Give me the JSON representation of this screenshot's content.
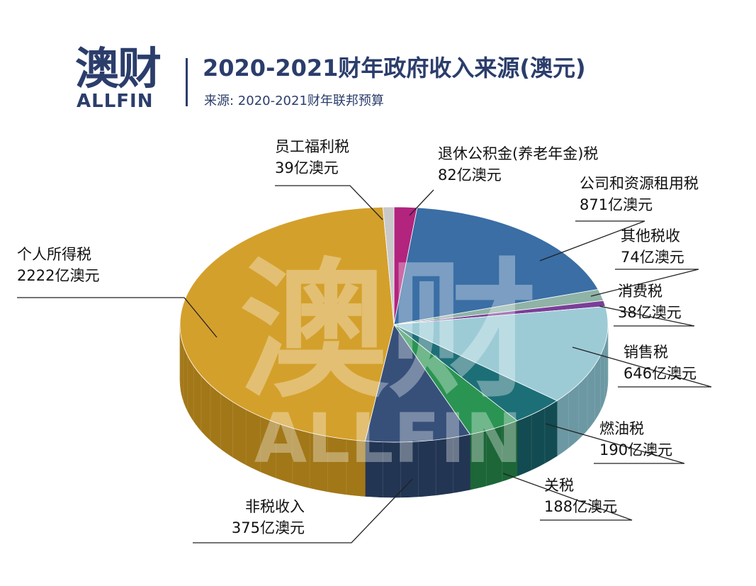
{
  "header": {
    "logo_cn": "澳财",
    "logo_en": "ALLFIN",
    "title": "2020-2021财年政府收入来源(澳元)",
    "source": "来源: 2020-2021财年联邦预算"
  },
  "watermark": {
    "cn": "澳财",
    "en": "ALLFIN"
  },
  "chart_data": {
    "type": "pie",
    "title": "2020-2021财年政府收入来源(澳元)",
    "subtitle": "来源: 2020-2021财年联邦预算",
    "unit": "亿澳元",
    "start_angle_deg": -90,
    "slices": [
      {
        "name": "退休公积金(养老年金)税",
        "value": 82,
        "label": "82亿澳元",
        "color": "#b2247e",
        "side": "#7c1858"
      },
      {
        "name": "公司和资源租用税",
        "value": 871,
        "label": "871亿澳元",
        "color": "#3a6ea5",
        "side": "#244a74"
      },
      {
        "name": "其他税收",
        "value": 74,
        "label": "74亿澳元",
        "color": "#8fb3a6",
        "side": "#5f8276"
      },
      {
        "name": "消费税",
        "value": 38,
        "label": "38亿澳元",
        "color": "#7a3f98",
        "side": "#532a69"
      },
      {
        "name": "销售税",
        "value": 646,
        "label": "646亿澳元",
        "color": "#9ccbd6",
        "side": "#6b98a3"
      },
      {
        "name": "燃油税",
        "value": 190,
        "label": "190亿澳元",
        "color": "#1d6f77",
        "side": "#124b51"
      },
      {
        "name": "关税",
        "value": 188,
        "label": "188亿澳元",
        "color": "#2a9452",
        "side": "#1c6638"
      },
      {
        "name": "非税收入",
        "value": 375,
        "label": "375亿澳元",
        "color": "#37507a",
        "side": "#223553"
      },
      {
        "name": "个人所得税",
        "value": 2222,
        "label": "2222亿澳元",
        "color": "#d4a02c",
        "side": "#a27717"
      },
      {
        "name": "员工福利税",
        "value": 39,
        "label": "39亿澳元",
        "color": "#c9c9c9",
        "side": "#9a9a9a"
      }
    ]
  }
}
